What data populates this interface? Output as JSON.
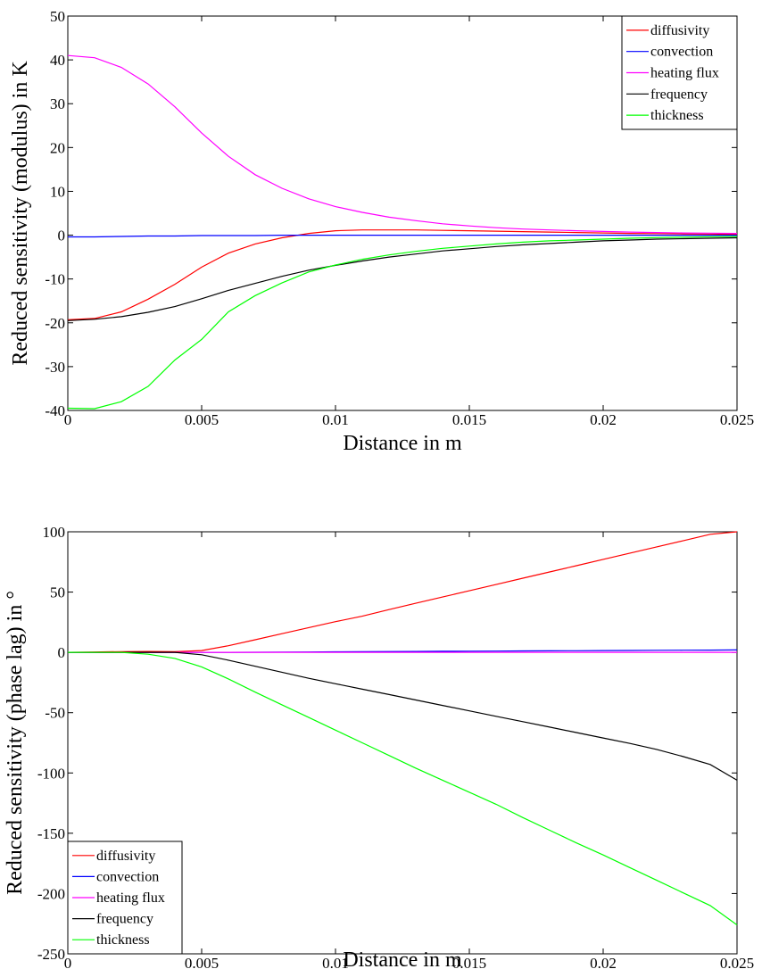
{
  "chart_data": [
    {
      "type": "line",
      "xlabel": "Distance in m",
      "ylabel": "Reduced sensitivity (modulus) in K",
      "xlim": [
        0,
        0.025
      ],
      "ylim": [
        -40,
        50
      ],
      "xticks": [
        0,
        0.005,
        0.01,
        0.015,
        0.02,
        0.025
      ],
      "xtick_labels": [
        "0",
        "0.005",
        "0.01",
        "0.015",
        "0.02",
        "0.025"
      ],
      "yticks": [
        -40,
        -30,
        -20,
        -10,
        0,
        10,
        20,
        30,
        40,
        50
      ],
      "ytick_labels": [
        "-40",
        "-30",
        "-20",
        "-10",
        "0",
        "10",
        "20",
        "30",
        "40",
        "50"
      ],
      "grid": false,
      "legend_position": "top-right",
      "x": [
        0,
        0.001,
        0.002,
        0.003,
        0.004,
        0.005,
        0.006,
        0.007,
        0.008,
        0.009,
        0.01,
        0.011,
        0.012,
        0.013,
        0.014,
        0.015,
        0.016,
        0.017,
        0.018,
        0.019,
        0.02,
        0.021,
        0.022,
        0.023,
        0.024,
        0.025
      ],
      "series": [
        {
          "name": "diffusivity",
          "color": "#ff0000",
          "values": [
            -19.3,
            -19,
            -17.5,
            -14.6,
            -11.2,
            -7.3,
            -4.1,
            -2,
            -0.6,
            0.4,
            1,
            1.2,
            1.2,
            1.2,
            1.1,
            1,
            0.9,
            0.8,
            0.7,
            0.6,
            0.5,
            0.4,
            0.35,
            0.3,
            0.25,
            0.2
          ]
        },
        {
          "name": "convection",
          "color": "#0000ff",
          "values": [
            -0.4,
            -0.4,
            -0.3,
            -0.2,
            -0.2,
            -0.1,
            -0.1,
            -0.1,
            0,
            0,
            0,
            0,
            0,
            0,
            0,
            0,
            0,
            0,
            0,
            0,
            0,
            0,
            0,
            0,
            0,
            0
          ]
        },
        {
          "name": "heating flux",
          "color": "#ff00ff",
          "values": [
            41,
            40.5,
            38.3,
            34.5,
            29.3,
            23.3,
            18,
            13.8,
            10.7,
            8.3,
            6.5,
            5.2,
            4.1,
            3.3,
            2.6,
            2.1,
            1.7,
            1.4,
            1.2,
            1,
            0.85,
            0.7,
            0.6,
            0.5,
            0.45,
            0.4
          ]
        },
        {
          "name": "frequency",
          "color": "#000000",
          "values": [
            -19.5,
            -19.2,
            -18.6,
            -17.6,
            -16.3,
            -14.5,
            -12.6,
            -11,
            -9.4,
            -8,
            -6.9,
            -5.9,
            -5,
            -4.3,
            -3.6,
            -3.1,
            -2.6,
            -2.2,
            -1.9,
            -1.6,
            -1.3,
            -1.1,
            -0.9,
            -0.8,
            -0.7,
            -0.6
          ]
        },
        {
          "name": "thickness",
          "color": "#00ff00",
          "values": [
            -39.5,
            -39.6,
            -38,
            -34.5,
            -28.5,
            -23.8,
            -17.5,
            -13.8,
            -10.9,
            -8.4,
            -6.8,
            -5.5,
            -4.5,
            -3.7,
            -3,
            -2.5,
            -2,
            -1.6,
            -1.3,
            -1.1,
            -0.9,
            -0.7,
            -0.55,
            -0.45,
            -0.35,
            -0.3
          ]
        }
      ]
    },
    {
      "type": "line",
      "xlabel": "Distance in m",
      "ylabel": "Reduced sensitivity (phase lag) in °",
      "xlim": [
        0,
        0.025
      ],
      "ylim": [
        -250,
        100
      ],
      "xticks": [
        0,
        0.005,
        0.01,
        0.015,
        0.02,
        0.025
      ],
      "xtick_labels": [
        "0",
        "0.005",
        "0.01",
        "0.015",
        "0.02",
        "0.025"
      ],
      "yticks": [
        -250,
        -200,
        -150,
        -100,
        -50,
        0,
        50,
        100
      ],
      "ytick_labels": [
        "-250",
        "-200",
        "-150",
        "-100",
        "-50",
        "0",
        "50",
        "100"
      ],
      "grid": false,
      "legend_position": "bottom-left",
      "x": [
        0,
        0.001,
        0.002,
        0.003,
        0.004,
        0.005,
        0.006,
        0.007,
        0.008,
        0.009,
        0.01,
        0.011,
        0.012,
        0.013,
        0.014,
        0.015,
        0.016,
        0.017,
        0.018,
        0.019,
        0.02,
        0.021,
        0.022,
        0.023,
        0.024,
        0.025
      ],
      "series": [
        {
          "name": "diffusivity",
          "color": "#ff0000",
          "values": [
            0,
            0.3,
            0.6,
            0.8,
            0.6,
            1.5,
            5.5,
            10.5,
            15.5,
            20.5,
            25.5,
            30,
            35.5,
            40.7,
            45.9,
            51.1,
            56.3,
            61.5,
            66.7,
            71.9,
            77.1,
            82.3,
            87.5,
            92.7,
            97.9,
            100
          ]
        },
        {
          "name": "convection",
          "color": "#0000ff",
          "values": [
            0,
            0,
            0,
            0,
            0,
            0,
            0,
            0.1,
            0.2,
            0.3,
            0.5,
            0.6,
            0.7,
            0.8,
            0.9,
            1,
            1.1,
            1.2,
            1.3,
            1.4,
            1.5,
            1.6,
            1.7,
            1.8,
            1.9,
            2
          ]
        },
        {
          "name": "heating flux",
          "color": "#ff00ff",
          "values": [
            0,
            0,
            0,
            0,
            0,
            0,
            0,
            0,
            0,
            0,
            0,
            0,
            0,
            0,
            0,
            0,
            0,
            0,
            0,
            0,
            0,
            0,
            0,
            0,
            0,
            0
          ]
        },
        {
          "name": "frequency",
          "color": "#000000",
          "values": [
            0,
            0,
            0,
            0,
            0,
            -2,
            -6.5,
            -11.5,
            -16.5,
            -21.5,
            -26,
            -30.5,
            -35,
            -39.5,
            -44,
            -48.5,
            -53,
            -57.5,
            -62,
            -66.5,
            -71,
            -75.5,
            -80.5,
            -86.5,
            -93,
            -106
          ]
        },
        {
          "name": "thickness",
          "color": "#00ff00",
          "values": [
            0,
            0,
            0,
            -1.5,
            -5,
            -12,
            -22,
            -33,
            -43.5,
            -54,
            -64.5,
            -75,
            -85.5,
            -96,
            -106,
            -116,
            -126,
            -137,
            -147.5,
            -158,
            -168,
            -178.5,
            -189,
            -199.5,
            -210,
            -226
          ]
        }
      ]
    }
  ]
}
